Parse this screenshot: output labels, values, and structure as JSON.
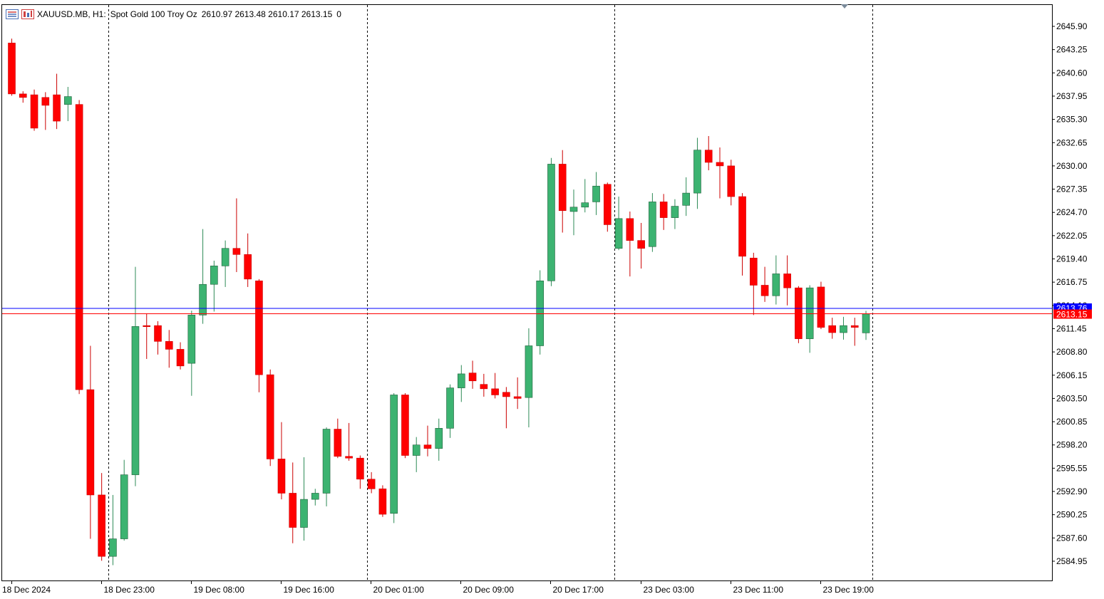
{
  "header": {
    "symbol": "XAUUSD.MB, H1:",
    "description": "Spot Gold 100 Troy Oz",
    "ohlc": "2610.97 2613.48 2610.17 2613.15",
    "extra": "0"
  },
  "colors": {
    "bull": "#3cb371",
    "bear": "#ff0000",
    "ask_line": "#0000ff",
    "bid_line": "#ff0000",
    "grid_separator": "#000000",
    "axis": "#000000"
  },
  "chart_data": {
    "type": "candlestick",
    "timeframe": "H1",
    "ylim": [
      2583.0,
      2647.5
    ],
    "yticks": [
      "2645.90",
      "2643.25",
      "2640.60",
      "2637.95",
      "2635.30",
      "2632.65",
      "2630.00",
      "2627.35",
      "2624.70",
      "2622.05",
      "2619.40",
      "2616.75",
      "2614.10",
      "2611.45",
      "2608.80",
      "2606.15",
      "2603.50",
      "2600.85",
      "2598.20",
      "2595.55",
      "2592.90",
      "2590.25",
      "2587.60",
      "2584.95"
    ],
    "xlabels": [
      {
        "index": 0,
        "label": "18 Dec 2024"
      },
      {
        "index": 8,
        "label": "18 Dec 23:00"
      },
      {
        "index": 16,
        "label": "19 Dec 08:00"
      },
      {
        "index": 24,
        "label": "19 Dec 16:00"
      },
      {
        "index": 32,
        "label": "20 Dec 01:00"
      },
      {
        "index": 40,
        "label": "20 Dec 09:00"
      },
      {
        "index": 48,
        "label": "20 Dec 17:00"
      },
      {
        "index": 56,
        "label": "23 Dec 03:00"
      },
      {
        "index": 64,
        "label": "23 Dec 11:00"
      },
      {
        "index": 72,
        "label": "23 Dec 19:00"
      }
    ],
    "day_separators": [
      8.6,
      31.6,
      53.6,
      76.6
    ],
    "ask_price": "2613.76",
    "bid_price": "2613.15",
    "candles": [
      {
        "o": 2644.0,
        "h": 2644.5,
        "l": 2638.0,
        "c": 2638.2
      },
      {
        "o": 2638.2,
        "h": 2638.5,
        "l": 2637.2,
        "c": 2637.8
      },
      {
        "o": 2638.1,
        "h": 2638.7,
        "l": 2634.0,
        "c": 2634.3
      },
      {
        "o": 2637.8,
        "h": 2638.4,
        "l": 2634.1,
        "c": 2636.9
      },
      {
        "o": 2638.1,
        "h": 2640.5,
        "l": 2634.2,
        "c": 2635.1
      },
      {
        "o": 2637.0,
        "h": 2639.0,
        "l": 2635.1,
        "c": 2637.9
      },
      {
        "o": 2637.0,
        "h": 2637.5,
        "l": 2604.0,
        "c": 2604.5
      },
      {
        "o": 2604.5,
        "h": 2609.5,
        "l": 2587.5,
        "c": 2592.5
      },
      {
        "o": 2592.5,
        "h": 2595.0,
        "l": 2585.0,
        "c": 2585.5
      },
      {
        "o": 2585.5,
        "h": 2592.5,
        "l": 2584.5,
        "c": 2587.5
      },
      {
        "o": 2587.5,
        "h": 2596.5,
        "l": 2587.3,
        "c": 2594.8
      },
      {
        "o": 2594.8,
        "h": 2618.5,
        "l": 2593.5,
        "c": 2611.7
      },
      {
        "o": 2611.8,
        "h": 2613.2,
        "l": 2608.0,
        "c": 2611.7
      },
      {
        "o": 2611.8,
        "h": 2612.3,
        "l": 2608.5,
        "c": 2610.0
      },
      {
        "o": 2610.0,
        "h": 2611.3,
        "l": 2607.0,
        "c": 2609.1
      },
      {
        "o": 2609.1,
        "h": 2609.9,
        "l": 2606.8,
        "c": 2607.2
      },
      {
        "o": 2607.5,
        "h": 2613.5,
        "l": 2603.8,
        "c": 2613.0
      },
      {
        "o": 2613.0,
        "h": 2622.8,
        "l": 2612.0,
        "c": 2616.5
      },
      {
        "o": 2616.5,
        "h": 2619.2,
        "l": 2613.4,
        "c": 2618.6
      },
      {
        "o": 2618.6,
        "h": 2621.5,
        "l": 2616.2,
        "c": 2620.6
      },
      {
        "o": 2620.6,
        "h": 2626.3,
        "l": 2617.9,
        "c": 2619.9
      },
      {
        "o": 2619.9,
        "h": 2622.3,
        "l": 2616.2,
        "c": 2617.1
      },
      {
        "o": 2616.9,
        "h": 2617.1,
        "l": 2604.2,
        "c": 2606.2
      },
      {
        "o": 2606.2,
        "h": 2606.8,
        "l": 2595.8,
        "c": 2596.6
      },
      {
        "o": 2596.6,
        "h": 2600.8,
        "l": 2592.0,
        "c": 2592.7
      },
      {
        "o": 2592.7,
        "h": 2596.2,
        "l": 2587.0,
        "c": 2588.8
      },
      {
        "o": 2588.8,
        "h": 2596.8,
        "l": 2587.3,
        "c": 2592.0
      },
      {
        "o": 2592.0,
        "h": 2593.2,
        "l": 2591.3,
        "c": 2592.7
      },
      {
        "o": 2592.7,
        "h": 2600.2,
        "l": 2591.2,
        "c": 2600.0
      },
      {
        "o": 2600.0,
        "h": 2601.2,
        "l": 2596.7,
        "c": 2596.9
      },
      {
        "o": 2596.9,
        "h": 2600.7,
        "l": 2596.4,
        "c": 2596.7
      },
      {
        "o": 2596.7,
        "h": 2597.0,
        "l": 2593.2,
        "c": 2594.3
      },
      {
        "o": 2594.3,
        "h": 2595.1,
        "l": 2592.7,
        "c": 2593.2
      },
      {
        "o": 2593.2,
        "h": 2593.6,
        "l": 2590.0,
        "c": 2590.3
      },
      {
        "o": 2590.4,
        "h": 2604.1,
        "l": 2589.3,
        "c": 2603.9
      },
      {
        "o": 2603.9,
        "h": 2604.1,
        "l": 2596.7,
        "c": 2597.0
      },
      {
        "o": 2597.0,
        "h": 2599.1,
        "l": 2595.1,
        "c": 2598.2
      },
      {
        "o": 2598.2,
        "h": 2600.4,
        "l": 2596.9,
        "c": 2597.8
      },
      {
        "o": 2597.8,
        "h": 2601.2,
        "l": 2596.4,
        "c": 2600.1
      },
      {
        "o": 2600.1,
        "h": 2605.1,
        "l": 2599.0,
        "c": 2604.7
      },
      {
        "o": 2604.7,
        "h": 2607.3,
        "l": 2603.1,
        "c": 2606.3
      },
      {
        "o": 2606.4,
        "h": 2607.8,
        "l": 2604.6,
        "c": 2605.5
      },
      {
        "o": 2605.1,
        "h": 2606.3,
        "l": 2603.7,
        "c": 2604.6
      },
      {
        "o": 2604.6,
        "h": 2606.4,
        "l": 2603.5,
        "c": 2603.9
      },
      {
        "o": 2604.2,
        "h": 2604.8,
        "l": 2600.1,
        "c": 2603.7
      },
      {
        "o": 2603.7,
        "h": 2605.9,
        "l": 2602.3,
        "c": 2603.5
      },
      {
        "o": 2603.6,
        "h": 2611.5,
        "l": 2600.2,
        "c": 2609.5
      },
      {
        "o": 2609.5,
        "h": 2618.1,
        "l": 2608.5,
        "c": 2616.9
      },
      {
        "o": 2616.9,
        "h": 2630.9,
        "l": 2616.3,
        "c": 2630.2
      },
      {
        "o": 2630.2,
        "h": 2631.8,
        "l": 2622.4,
        "c": 2624.9
      },
      {
        "o": 2624.8,
        "h": 2627.3,
        "l": 2622.1,
        "c": 2625.3
      },
      {
        "o": 2625.3,
        "h": 2628.5,
        "l": 2624.7,
        "c": 2625.8
      },
      {
        "o": 2625.9,
        "h": 2629.3,
        "l": 2624.4,
        "c": 2627.7
      },
      {
        "o": 2627.9,
        "h": 2628.1,
        "l": 2622.5,
        "c": 2623.3
      },
      {
        "o": 2620.6,
        "h": 2626.5,
        "l": 2620.4,
        "c": 2624.0
      },
      {
        "o": 2624.0,
        "h": 2624.8,
        "l": 2617.4,
        "c": 2621.5
      },
      {
        "o": 2621.5,
        "h": 2623.5,
        "l": 2618.3,
        "c": 2620.6
      },
      {
        "o": 2620.8,
        "h": 2626.9,
        "l": 2620.2,
        "c": 2625.9
      },
      {
        "o": 2625.9,
        "h": 2626.8,
        "l": 2622.7,
        "c": 2624.1
      },
      {
        "o": 2624.1,
        "h": 2626.2,
        "l": 2622.8,
        "c": 2625.4
      },
      {
        "o": 2625.5,
        "h": 2628.7,
        "l": 2624.3,
        "c": 2626.9
      },
      {
        "o": 2626.9,
        "h": 2633.2,
        "l": 2625.1,
        "c": 2631.8
      },
      {
        "o": 2631.8,
        "h": 2633.4,
        "l": 2629.5,
        "c": 2630.4
      },
      {
        "o": 2630.4,
        "h": 2632.1,
        "l": 2626.3,
        "c": 2630.0
      },
      {
        "o": 2630.0,
        "h": 2630.7,
        "l": 2625.5,
        "c": 2626.5
      },
      {
        "o": 2626.5,
        "h": 2626.9,
        "l": 2617.5,
        "c": 2619.7
      },
      {
        "o": 2619.5,
        "h": 2620.1,
        "l": 2613.0,
        "c": 2616.4
      },
      {
        "o": 2616.4,
        "h": 2618.5,
        "l": 2614.5,
        "c": 2615.2
      },
      {
        "o": 2615.2,
        "h": 2619.8,
        "l": 2614.2,
        "c": 2617.7
      },
      {
        "o": 2617.7,
        "h": 2619.8,
        "l": 2614.1,
        "c": 2616.1
      },
      {
        "o": 2616.1,
        "h": 2616.3,
        "l": 2609.8,
        "c": 2610.3
      },
      {
        "o": 2610.3,
        "h": 2616.4,
        "l": 2608.7,
        "c": 2616.1
      },
      {
        "o": 2616.2,
        "h": 2616.8,
        "l": 2611.4,
        "c": 2611.6
      },
      {
        "o": 2611.8,
        "h": 2612.7,
        "l": 2610.3,
        "c": 2611.0
      },
      {
        "o": 2611.0,
        "h": 2612.8,
        "l": 2610.2,
        "c": 2611.8
      },
      {
        "o": 2611.8,
        "h": 2612.7,
        "l": 2609.5,
        "c": 2611.6
      },
      {
        "o": 2610.97,
        "h": 2613.48,
        "l": 2610.17,
        "c": 2613.15
      }
    ]
  }
}
